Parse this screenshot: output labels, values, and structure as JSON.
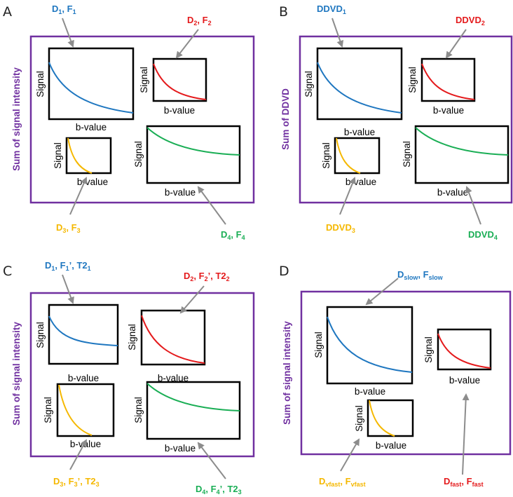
{
  "colors": {
    "frame": "#7030A0",
    "arrow": "#8c8c8c",
    "blue": "#1F77C0",
    "red": "#E41A1C",
    "yellow": "#F5B800",
    "green": "#1AAE55",
    "box": "#000000"
  },
  "axis": {
    "signal": "Signal",
    "bvalue": "b-value"
  },
  "panels": {
    "A": {
      "letter": "A",
      "side_label": "Sum of signal intensity",
      "labels": {
        "c1": {
          "main": "D",
          "sub": "1",
          "sep": ", ",
          "main2": "F",
          "sub2": "1",
          "suffix": ""
        },
        "c2": {
          "main": "D",
          "sub": "2",
          "sep": ", ",
          "main2": "F",
          "sub2": "2",
          "suffix": ""
        },
        "c3": {
          "main": "D",
          "sub": "3",
          "sep": ", ",
          "main2": "F",
          "sub2": "3",
          "suffix": ""
        },
        "c4": {
          "main": "D",
          "sub": "4",
          "sep": ", ",
          "main2": "F",
          "sub2": "4",
          "suffix": ""
        }
      }
    },
    "B": {
      "letter": "B",
      "side_label": "Sum of DDVD",
      "labels": {
        "c1": {
          "main": "DDVD",
          "sub": "1"
        },
        "c2": {
          "main": "DDVD",
          "sub": "2"
        },
        "c3": {
          "main": "DDVD",
          "sub": "3"
        },
        "c4": {
          "main": "DDVD",
          "sub": "4"
        }
      }
    },
    "C": {
      "letter": "C",
      "side_label": "Sum of signal intensity",
      "labels": {
        "c1": {
          "main": "D",
          "sub": "1",
          "sep": ", ",
          "main2": "F",
          "sub2": "1",
          "mid": "’, ",
          "main3": "T2",
          "sub3": "1"
        },
        "c2": {
          "main": "D",
          "sub": "2",
          "sep": ", ",
          "main2": "F",
          "sub2": "2",
          "mid": "’, ",
          "main3": "T2",
          "sub3": "2"
        },
        "c3": {
          "main": "D",
          "sub": "3",
          "sep": ", ",
          "main2": "F",
          "sub2": "3",
          "mid": "’, ",
          "main3": "T2",
          "sub3": "3"
        },
        "c4": {
          "main": "D",
          "sub": "4",
          "sep": ", ",
          "main2": "F",
          "sub2": "4",
          "mid": "’, ",
          "main3": "T2",
          "sub3": "3"
        }
      }
    },
    "D": {
      "letter": "D",
      "side_label": "Sum of signal intensity",
      "labels": {
        "c1": {
          "main": "D",
          "sub": "slow",
          "sep": ", ",
          "main2": "F",
          "sub2": "slow"
        },
        "c2": {
          "main": "D",
          "sub": "fast",
          "sep": ", ",
          "main2": "F",
          "sub2": "fast"
        },
        "c3": {
          "main": "D",
          "sub": "vfast",
          "sep": ", ",
          "main2": "F",
          "sub2": "vfast"
        }
      }
    }
  }
}
